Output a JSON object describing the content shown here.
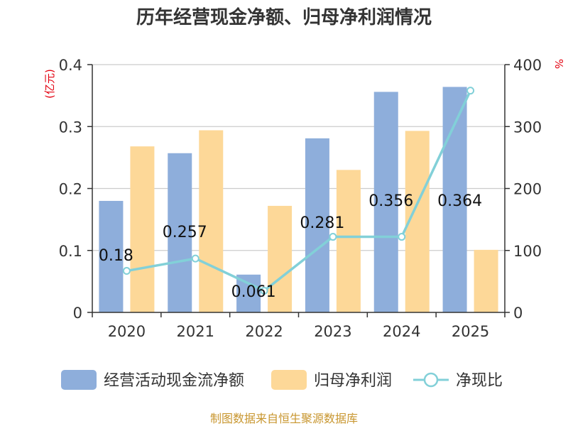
{
  "chart_data": {
    "type": "bar",
    "title": "历年经营现金净额、归母净利润情况",
    "categories": [
      "2020",
      "2021",
      "2022",
      "2023",
      "2024",
      "2025"
    ],
    "series": [
      {
        "name": "经营活动现金流净额",
        "axis": "left",
        "kind": "bar",
        "color": "#8eaedb",
        "values": [
          0.18,
          0.257,
          0.061,
          0.281,
          0.356,
          0.364
        ]
      },
      {
        "name": "归母净利润",
        "axis": "left",
        "kind": "bar",
        "color": "#fdd898",
        "values": [
          0.268,
          0.294,
          0.172,
          0.23,
          0.293,
          0.101
        ]
      },
      {
        "name": "净现比",
        "axis": "right",
        "kind": "line",
        "color": "#82d0d8",
        "values": [
          67,
          87,
          35,
          122,
          122,
          358
        ]
      }
    ],
    "data_labels": [
      "0.18",
      "0.257",
      "0.061",
      "0.281",
      "0.356",
      "0.364"
    ],
    "y_left": {
      "label": "(亿元)",
      "ticks": [
        "0",
        "0.1",
        "0.2",
        "0.3",
        "0.4"
      ],
      "range": [
        0,
        0.4
      ]
    },
    "y_right": {
      "label": "%",
      "ticks": [
        "0",
        "100",
        "200",
        "300",
        "400"
      ],
      "range": [
        0,
        400
      ]
    },
    "grid": true,
    "legend_position": "bottom",
    "source": "制图数据来自恒生聚源数据库",
    "colors": {
      "axis": "#333333",
      "grid": "#cccccc",
      "unit": "#e3000f",
      "source": "#c8962f"
    }
  }
}
